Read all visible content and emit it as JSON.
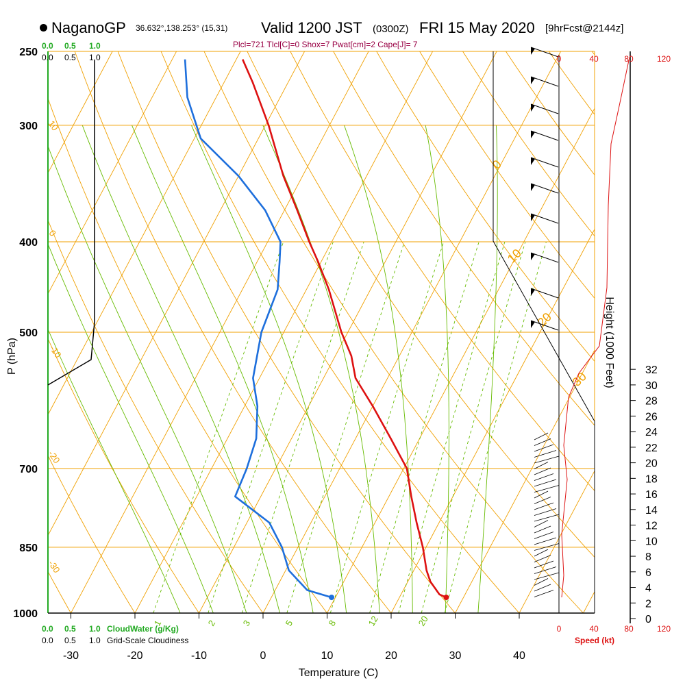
{
  "header": {
    "station": "NaganoGP",
    "location": "36.632°,138.253° (15,31)",
    "valid": "Valid 1200 JST",
    "zulu": "(0300Z)",
    "date": "FRI 15 May 2020",
    "forecast": "[9hrFcst@2144z]",
    "indices": "Plcl=721 Tlcl[C]=0 Shox=7 Pwat[cm]=2 Cape[J]= 7"
  },
  "colors": {
    "temperature": "#dd1111",
    "dewpoint": "#1e6fdc",
    "isobar": "#f0a000",
    "isotherm": "#f0a000",
    "mixing_ratio": "#66bb00",
    "cloudwater": "#22aa22",
    "wind_speed": "#dd1111",
    "indices": "#990044"
  },
  "chart_data": {
    "type": "skew-t",
    "xlabel": "Temperature (C)",
    "ylabel": "P (hPa)",
    "y2label": "Height (1000 Feet)",
    "x_ticks": [
      "-30",
      "-20",
      "-10",
      "0",
      "10",
      "20",
      "30",
      "40"
    ],
    "pressure_ticks": [
      "250",
      "300",
      "400",
      "500",
      "700",
      "850",
      "1000"
    ],
    "height_ticks": [
      "0",
      "2",
      "4",
      "6",
      "8",
      "10",
      "12",
      "14",
      "16",
      "18",
      "20",
      "22",
      "24",
      "26",
      "28",
      "30",
      "32"
    ],
    "cloudwater_ticks": [
      "0.0",
      "0.5",
      "1.0"
    ],
    "cloudwater_label": "CloudWater (g/Kg)",
    "cloudiness_ticks": [
      "0.0",
      "0.5",
      "1.0"
    ],
    "cloudiness_label": "Grid-Scale Cloudiness",
    "wind_speed_ticks": [
      "0",
      "40",
      "80",
      "120"
    ],
    "wind_speed_label": "Speed (kt)",
    "dry_adiabat_labels": [
      "10",
      "0",
      "-10",
      "-20",
      "-30"
    ],
    "moist_adiabat_labels": [
      "0",
      "10",
      "20",
      "30"
    ],
    "mixing_ratio_labels": [
      "1",
      "2",
      "3",
      "5",
      "8",
      "12",
      "20"
    ],
    "temperature_profile": [
      {
        "p": 962,
        "t": 27.3
      },
      {
        "p": 955,
        "t": 26.0
      },
      {
        "p": 925,
        "t": 23.5
      },
      {
        "p": 900,
        "t": 22.0
      },
      {
        "p": 850,
        "t": 19.5
      },
      {
        "p": 800,
        "t": 16.5
      },
      {
        "p": 750,
        "t": 13.5
      },
      {
        "p": 700,
        "t": 10.5
      },
      {
        "p": 650,
        "t": 5.5
      },
      {
        "p": 600,
        "t": 0.0
      },
      {
        "p": 560,
        "t": -5.0
      },
      {
        "p": 530,
        "t": -7.5
      },
      {
        "p": 500,
        "t": -11.0
      },
      {
        "p": 450,
        "t": -16.5
      },
      {
        "p": 420,
        "t": -20.5
      },
      {
        "p": 400,
        "t": -23.5
      },
      {
        "p": 370,
        "t": -28.0
      },
      {
        "p": 340,
        "t": -33.0
      },
      {
        "p": 300,
        "t": -39.5
      },
      {
        "p": 270,
        "t": -45.5
      },
      {
        "p": 255,
        "t": -49.0
      }
    ],
    "dewpoint_profile": [
      {
        "p": 962,
        "t": 9.4
      },
      {
        "p": 945,
        "t": 5.0
      },
      {
        "p": 900,
        "t": 0.5
      },
      {
        "p": 850,
        "t": -2.5
      },
      {
        "p": 800,
        "t": -6.5
      },
      {
        "p": 750,
        "t": -14.0
      },
      {
        "p": 700,
        "t": -14.5
      },
      {
        "p": 650,
        "t": -15.5
      },
      {
        "p": 600,
        "t": -18.0
      },
      {
        "p": 560,
        "t": -21.0
      },
      {
        "p": 500,
        "t": -23.5
      },
      {
        "p": 450,
        "t": -24.5
      },
      {
        "p": 420,
        "t": -26.5
      },
      {
        "p": 400,
        "t": -28.0
      },
      {
        "p": 370,
        "t": -33.0
      },
      {
        "p": 340,
        "t": -40.0
      },
      {
        "p": 310,
        "t": -49.0
      },
      {
        "p": 280,
        "t": -54.5
      },
      {
        "p": 255,
        "t": -58.0
      }
    ]
  }
}
